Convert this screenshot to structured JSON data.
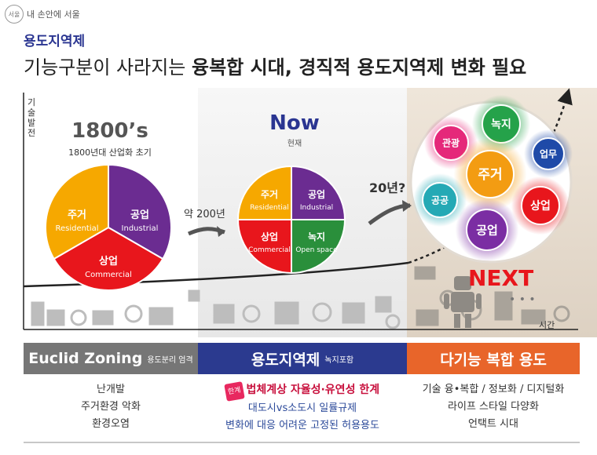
{
  "brand": {
    "mark": "서울",
    "text": "내 손안에 서울"
  },
  "section_tag": "용도지역제",
  "headline": {
    "normal": "기능구분이 사라지는 ",
    "bold": "융복합 시대, 경직적 용도지역제 변화 필요"
  },
  "axes": {
    "y_label": "기술발전",
    "x_label": "시간"
  },
  "eras": {
    "past": {
      "title": "1800’s",
      "subtitle": "1800년대 산업화 초기",
      "segments": [
        {
          "ko": "주거",
          "en": "Residential",
          "color": "#f6a800"
        },
        {
          "ko": "공업",
          "en": "Industrial",
          "color": "#6b2c91"
        },
        {
          "ko": "상업",
          "en": "Commercial",
          "color": "#e8161c"
        }
      ]
    },
    "now": {
      "title": "Now",
      "subtitle": "현재",
      "segments": [
        {
          "ko": "주거",
          "en": "Residential",
          "color": "#f6a800"
        },
        {
          "ko": "공업",
          "en": "Industrial",
          "color": "#6b2c91"
        },
        {
          "ko": "상업",
          "en": "Commercial",
          "color": "#e8161c"
        },
        {
          "ko": "녹지",
          "en": "Open space",
          "color": "#2a8f3b"
        }
      ]
    },
    "next": {
      "title": "NEXT",
      "dots": "• • •",
      "bubbles": [
        {
          "label": "녹지",
          "color": "#25a24a"
        },
        {
          "label": "관광",
          "color": "#e5287a"
        },
        {
          "label": "업무",
          "color": "#1f4aa8"
        },
        {
          "label": "주거",
          "color": "#f39c12"
        },
        {
          "label": "공공",
          "color": "#24a9b5"
        },
        {
          "label": "상업",
          "color": "#e8161c"
        },
        {
          "label": "공업",
          "color": "#7b2ea3"
        }
      ]
    }
  },
  "transitions": {
    "first": "약 200년",
    "second": "20년?"
  },
  "bottom": {
    "col1": {
      "title": "Euclid Zoning",
      "subtitle": "용도분리 엄격",
      "color": "#767676",
      "items": [
        "난개발",
        "주거환경 악화",
        "환경오염"
      ]
    },
    "col2": {
      "title": "용도지역제",
      "subtitle": "녹지포함",
      "color": "#2b3a8f",
      "badge": "한계",
      "highlight": "법체계상 자율성·유연성 한계",
      "items": [
        "대도시vs소도시 일률규제",
        "변화에 대응 어려운 고정된 허용용도"
      ]
    },
    "col3": {
      "title": "다기능 복합 용도",
      "subtitle": "",
      "color": "#e8652a",
      "items": [
        "기술 융•복합 / 정보화 / 디지털화",
        "라이프 스타일 다양화",
        "언택트 시대"
      ]
    }
  }
}
